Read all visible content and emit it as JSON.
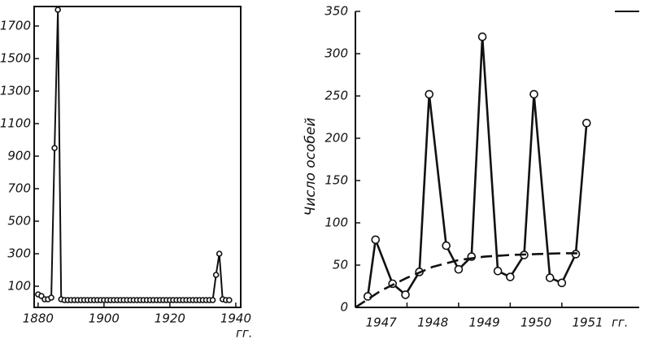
{
  "chart_data": [
    {
      "type": "line",
      "xlabel": "гг.",
      "xlim": [
        1878.8,
        1941.5
      ],
      "ylim": [
        -30,
        1820
      ],
      "xticks": [
        1880,
        1900,
        1920,
        1940
      ],
      "yticks": [
        100,
        300,
        500,
        700,
        900,
        1100,
        1300,
        1500,
        1700
      ],
      "frame": true,
      "series": [
        {
          "color": "#111111",
          "markers": true,
          "x": [
            1880,
            1881,
            1882,
            1883,
            1884,
            1885,
            1886,
            1887,
            1888,
            1889,
            1890,
            1891,
            1892,
            1893,
            1894,
            1895,
            1896,
            1897,
            1898,
            1899,
            1900,
            1901,
            1902,
            1903,
            1904,
            1905,
            1906,
            1907,
            1908,
            1909,
            1910,
            1911,
            1912,
            1913,
            1914,
            1915,
            1916,
            1917,
            1918,
            1919,
            1920,
            1921,
            1922,
            1923,
            1924,
            1925,
            1926,
            1927,
            1928,
            1929,
            1930,
            1931,
            1932,
            1933,
            1934,
            1935,
            1936,
            1937,
            1938
          ],
          "values": [
            50,
            40,
            20,
            20,
            30,
            950,
            1800,
            20,
            15,
            15,
            15,
            15,
            15,
            15,
            15,
            15,
            15,
            15,
            15,
            15,
            15,
            15,
            15,
            15,
            15,
            15,
            15,
            15,
            15,
            15,
            15,
            15,
            15,
            15,
            15,
            15,
            15,
            15,
            15,
            15,
            15,
            15,
            15,
            15,
            15,
            15,
            15,
            15,
            15,
            15,
            15,
            15,
            15,
            15,
            170,
            300,
            20,
            15,
            15
          ]
        }
      ]
    },
    {
      "type": "line",
      "ylabel": "Число особей",
      "xlabel": "гг.",
      "xlim": [
        1947,
        1952.5
      ],
      "ylim": [
        0,
        350
      ],
      "xticks": [
        1948,
        1949,
        1950,
        1951
      ],
      "xtick_labels": [
        {
          "value": 1947.5,
          "label": "1947"
        },
        {
          "value": 1948.5,
          "label": "1948"
        },
        {
          "value": 1949.5,
          "label": "1949"
        },
        {
          "value": 1950.5,
          "label": "1950"
        },
        {
          "value": 1951.5,
          "label": "1951"
        }
      ],
      "yticks": [
        0,
        50,
        100,
        150,
        200,
        250,
        300,
        350
      ],
      "frame": false,
      "series": [
        {
          "color": "#111111",
          "markers": true,
          "x": [
            1947.24,
            1947.39,
            1947.72,
            1947.97,
            1948.24,
            1948.43,
            1948.76,
            1949.0,
            1949.25,
            1949.46,
            1949.76,
            1950.0,
            1950.27,
            1950.46,
            1950.77,
            1951.0,
            1951.27,
            1951.48
          ],
          "values": [
            13,
            80,
            28,
            15,
            42,
            252,
            73,
            45,
            60,
            320,
            43,
            36,
            62,
            252,
            35,
            29,
            63,
            218
          ]
        },
        {
          "color": "#111111",
          "markers": false,
          "dashed": true,
          "x": [
            1947.0,
            1947.5,
            1948.0,
            1948.5,
            1949.0,
            1949.5,
            1950.0,
            1950.5,
            1951.0,
            1951.3
          ],
          "values": [
            0,
            20,
            35,
            48,
            56,
            60,
            62,
            63,
            64,
            64
          ]
        }
      ]
    }
  ]
}
